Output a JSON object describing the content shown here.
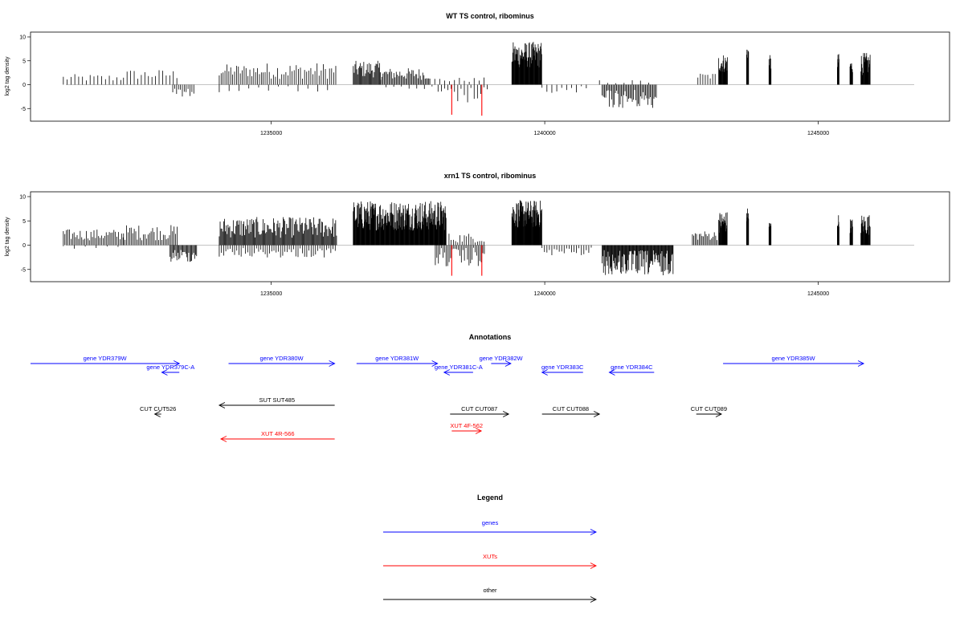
{
  "chart_data": [
    {
      "type": "bar",
      "title": "WT TS control, ribominus",
      "ylabel": "log2 tag density",
      "xlim": [
        1230600,
        1247400
      ],
      "ylim": [
        -7,
        10
      ],
      "x_ticks": [
        1235000,
        1240000,
        1245000
      ],
      "y_ticks": [
        -5,
        0,
        5,
        10
      ],
      "series": [
        {
          "strand": "plus",
          "color": "#000000",
          "regions": [
            {
              "start": 1231200,
              "end": 1232300,
              "step": 70,
              "min": 0.6,
              "max": 2.2
            },
            {
              "start": 1232300,
              "end": 1233300,
              "step": 65,
              "min": 1.0,
              "max": 3.2
            },
            {
              "start": 1234050,
              "end": 1234850,
              "step": 35,
              "min": 1.5,
              "max": 4.3
            },
            {
              "start": 1234850,
              "end": 1236200,
              "step": 38,
              "min": 1.2,
              "max": 4.6
            },
            {
              "start": 1236500,
              "end": 1237000,
              "step": 16,
              "min": 1.5,
              "max": 5.0
            },
            {
              "start": 1237000,
              "end": 1237900,
              "step": 22,
              "min": 1.0,
              "max": 3.5
            },
            {
              "start": 1237900,
              "end": 1238900,
              "step": 90,
              "min": 0.5,
              "max": 1.5
            },
            {
              "start": 1239400,
              "end": 1239950,
              "step": 8,
              "min": 3.5,
              "max": 9.0
            },
            {
              "start": 1241000,
              "end": 1242000,
              "step": 150,
              "min": 0.2,
              "max": 1.0
            },
            {
              "start": 1242800,
              "end": 1243150,
              "step": 45,
              "min": 1.0,
              "max": 2.5
            },
            {
              "start": 1243180,
              "end": 1243340,
              "step": 8,
              "min": 2.5,
              "max": 6.5
            },
            {
              "start": 1243690,
              "end": 1243730,
              "step": 6,
              "min": 4.0,
              "max": 9.2
            },
            {
              "start": 1244100,
              "end": 1244140,
              "step": 6,
              "min": 2.5,
              "max": 6.2
            },
            {
              "start": 1245350,
              "end": 1245380,
              "step": 5,
              "min": 3.0,
              "max": 6.5
            },
            {
              "start": 1245580,
              "end": 1245630,
              "step": 6,
              "min": 2.5,
              "max": 5.2
            },
            {
              "start": 1245780,
              "end": 1245950,
              "step": 8,
              "min": 2.0,
              "max": 6.7
            }
          ]
        },
        {
          "strand": "minus",
          "color": "#000000",
          "regions": [
            {
              "start": 1233200,
              "end": 1233600,
              "step": 35,
              "min": 0.8,
              "max": 2.5
            },
            {
              "start": 1234050,
              "end": 1236200,
              "step": 180,
              "min": 0.3,
              "max": 1.6
            },
            {
              "start": 1237100,
              "end": 1238000,
              "step": 140,
              "min": 0.3,
              "max": 1.2
            },
            {
              "start": 1238050,
              "end": 1238950,
              "step": 60,
              "min": 0.5,
              "max": 4.0
            },
            {
              "start": 1239950,
              "end": 1240800,
              "step": 90,
              "min": 0.3,
              "max": 2.0
            },
            {
              "start": 1241050,
              "end": 1242050,
              "step": 22,
              "min": 1.0,
              "max": 5.0
            }
          ]
        },
        {
          "strand": "minus",
          "color": "#ff0000",
          "bars": [
            {
              "x": 1238300,
              "y": -6.3
            },
            {
              "x": 1238850,
              "y": -6.5
            }
          ]
        }
      ]
    },
    {
      "type": "bar",
      "title": "xrn1 TS control, ribominus",
      "ylabel": "log2 tag density",
      "xlim": [
        1230600,
        1247400
      ],
      "ylim": [
        -7,
        10
      ],
      "x_ticks": [
        1235000,
        1240000,
        1245000
      ],
      "y_ticks": [
        -5,
        0,
        5,
        10
      ],
      "series": [
        {
          "strand": "plus",
          "color": "#000000",
          "regions": [
            {
              "start": 1231200,
              "end": 1232300,
              "step": 28,
              "min": 1.0,
              "max": 3.3
            },
            {
              "start": 1232300,
              "end": 1233300,
              "step": 28,
              "min": 1.0,
              "max": 4.2
            },
            {
              "start": 1234050,
              "end": 1236200,
              "step": 16,
              "min": 1.5,
              "max": 5.8
            },
            {
              "start": 1236500,
              "end": 1238200,
              "step": 8,
              "min": 3.0,
              "max": 9.2
            },
            {
              "start": 1238250,
              "end": 1238900,
              "step": 40,
              "min": 0.5,
              "max": 2.5
            },
            {
              "start": 1239400,
              "end": 1239950,
              "step": 7,
              "min": 3.5,
              "max": 9.3
            },
            {
              "start": 1242700,
              "end": 1243150,
              "step": 25,
              "min": 1.0,
              "max": 3.0
            },
            {
              "start": 1243180,
              "end": 1243340,
              "step": 7,
              "min": 2.5,
              "max": 7.0
            },
            {
              "start": 1243690,
              "end": 1243730,
              "step": 6,
              "min": 4.0,
              "max": 8.5
            },
            {
              "start": 1244100,
              "end": 1244140,
              "step": 6,
              "min": 2.5,
              "max": 5.0
            },
            {
              "start": 1245350,
              "end": 1245380,
              "step": 5,
              "min": 3.0,
              "max": 6.5
            },
            {
              "start": 1245580,
              "end": 1245630,
              "step": 6,
              "min": 2.5,
              "max": 5.5
            },
            {
              "start": 1245780,
              "end": 1245950,
              "step": 8,
              "min": 2.0,
              "max": 6.5
            }
          ]
        },
        {
          "strand": "minus",
          "color": "#000000",
          "regions": [
            {
              "start": 1231200,
              "end": 1232300,
              "step": 200,
              "min": 0.2,
              "max": 1.2
            },
            {
              "start": 1233150,
              "end": 1233650,
              "step": 18,
              "min": 0.8,
              "max": 3.5
            },
            {
              "start": 1234050,
              "end": 1236200,
              "step": 40,
              "min": 0.5,
              "max": 2.6
            },
            {
              "start": 1238000,
              "end": 1238900,
              "step": 28,
              "min": 0.5,
              "max": 4.5
            },
            {
              "start": 1239950,
              "end": 1240850,
              "step": 45,
              "min": 0.5,
              "max": 2.2
            },
            {
              "start": 1241050,
              "end": 1242350,
              "step": 12,
              "min": 1.0,
              "max": 6.3
            }
          ]
        },
        {
          "strand": "minus",
          "color": "#ff0000",
          "bars": [
            {
              "x": 1238300,
              "y": -6.3
            },
            {
              "x": 1238850,
              "y": -6.3
            }
          ]
        }
      ]
    }
  ],
  "annotations": {
    "title": "Annotations",
    "items": [
      {
        "label": "gene YDR379W",
        "color": "#0000ff",
        "start": 1230600,
        "end": 1233320,
        "dir": "right",
        "row": 0
      },
      {
        "label": "gene YDR379C-A",
        "color": "#0000ff",
        "start": 1233000,
        "end": 1233320,
        "dir": "left",
        "row": 1
      },
      {
        "label": "gene YDR380W",
        "color": "#0000ff",
        "start": 1234220,
        "end": 1236160,
        "dir": "right",
        "row": 0
      },
      {
        "label": "gene YDR381W",
        "color": "#0000ff",
        "start": 1236560,
        "end": 1238040,
        "dir": "right",
        "row": 0
      },
      {
        "label": "gene YDR381C-A",
        "color": "#0000ff",
        "start": 1238160,
        "end": 1238690,
        "dir": "left",
        "row": 1
      },
      {
        "label": "gene YDR382W",
        "color": "#0000ff",
        "start": 1239020,
        "end": 1239380,
        "dir": "right",
        "row": 0
      },
      {
        "label": "gene YDR383C",
        "color": "#0000ff",
        "start": 1239950,
        "end": 1240700,
        "dir": "left",
        "row": 1
      },
      {
        "label": "gene YDR384C",
        "color": "#0000ff",
        "start": 1241180,
        "end": 1242000,
        "dir": "left",
        "row": 1
      },
      {
        "label": "gene YDR385W",
        "color": "#0000ff",
        "start": 1243260,
        "end": 1245830,
        "dir": "right",
        "row": 0
      },
      {
        "label": "SUT SUT485",
        "color": "#000000",
        "start": 1234050,
        "end": 1236160,
        "dir": "left",
        "row": 2
      },
      {
        "label": "CUT CUT526",
        "color": "#000000",
        "start": 1232870,
        "end": 1232990,
        "dir": "left",
        "row": 3
      },
      {
        "label": "XUT 4R-566",
        "color": "#ff0000",
        "start": 1234080,
        "end": 1236160,
        "dir": "left",
        "row": 4
      },
      {
        "label": "CUT CUT087",
        "color": "#000000",
        "start": 1238270,
        "end": 1239340,
        "dir": "right",
        "row": 3
      },
      {
        "label": "XUT 4F-562",
        "color": "#ff0000",
        "start": 1238300,
        "end": 1238840,
        "dir": "right",
        "row": 5
      },
      {
        "label": "CUT CUT088",
        "color": "#000000",
        "start": 1239950,
        "end": 1241000,
        "dir": "right",
        "row": 3
      },
      {
        "label": "CUT CUT089",
        "color": "#000000",
        "start": 1242770,
        "end": 1243230,
        "dir": "right",
        "row": 3
      }
    ]
  },
  "legend": {
    "title": "Legend",
    "items": [
      {
        "label": "genes",
        "color": "#0000ff"
      },
      {
        "label": "XUTs",
        "color": "#ff0000"
      },
      {
        "label": "other",
        "color": "#000000"
      }
    ]
  }
}
